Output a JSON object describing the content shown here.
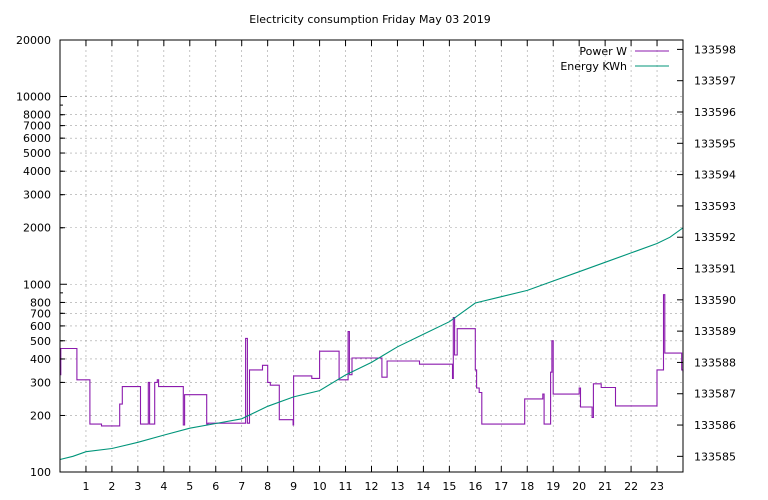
{
  "chart_data": {
    "type": "line",
    "title": "Electricity consumption Friday May 03 2019",
    "xlim": [
      0,
      24
    ],
    "x_ticks": [
      1,
      2,
      3,
      4,
      5,
      6,
      7,
      8,
      9,
      10,
      11,
      12,
      13,
      14,
      15,
      16,
      17,
      18,
      19,
      20,
      21,
      22,
      23
    ],
    "y_left": {
      "scale": "log",
      "lim": [
        100,
        20000
      ],
      "major_ticks": [
        100,
        1000,
        10000
      ],
      "labeled_ticks": [
        100,
        200,
        300,
        400,
        500,
        600,
        700,
        800,
        1000,
        2000,
        3000,
        4000,
        5000,
        6000,
        7000,
        8000,
        10000,
        20000
      ]
    },
    "y_right": {
      "scale": "linear",
      "lim": [
        133584.5,
        133598.3
      ],
      "ticks": [
        133585,
        133586,
        133587,
        133588,
        133589,
        133590,
        133591,
        133592,
        133593,
        133594,
        133595,
        133596,
        133597,
        133598
      ]
    },
    "legend_position": "top-right",
    "grid": true,
    "series": [
      {
        "name": "Power W",
        "color": "#8b1aad",
        "axis": "left",
        "step": true,
        "points": [
          [
            0.0,
            330
          ],
          [
            0.03,
            455
          ],
          [
            0.65,
            455
          ],
          [
            0.65,
            310
          ],
          [
            1.15,
            310
          ],
          [
            1.15,
            180
          ],
          [
            1.6,
            180
          ],
          [
            1.6,
            176
          ],
          [
            2.3,
            176
          ],
          [
            2.3,
            230
          ],
          [
            2.4,
            285
          ],
          [
            3.1,
            285
          ],
          [
            3.1,
            180
          ],
          [
            3.35,
            180
          ],
          [
            3.4,
            300
          ],
          [
            3.45,
            180
          ],
          [
            3.65,
            180
          ],
          [
            3.65,
            300
          ],
          [
            3.75,
            310
          ],
          [
            3.8,
            285
          ],
          [
            4.7,
            285
          ],
          [
            4.75,
            178
          ],
          [
            4.8,
            258
          ],
          [
            5.6,
            258
          ],
          [
            5.65,
            180
          ],
          [
            5.7,
            182
          ],
          [
            7.1,
            182
          ],
          [
            7.15,
            515
          ],
          [
            7.22,
            182
          ],
          [
            7.3,
            350
          ],
          [
            7.75,
            350
          ],
          [
            7.8,
            370
          ],
          [
            7.95,
            370
          ],
          [
            8.0,
            300
          ],
          [
            8.1,
            290
          ],
          [
            8.3,
            290
          ],
          [
            8.45,
            190
          ],
          [
            8.95,
            190
          ],
          [
            8.98,
            178
          ],
          [
            9.0,
            325
          ],
          [
            9.6,
            325
          ],
          [
            9.7,
            315
          ],
          [
            9.95,
            315
          ],
          [
            10.0,
            440
          ],
          [
            10.7,
            440
          ],
          [
            10.75,
            310
          ],
          [
            11.05,
            310
          ],
          [
            11.1,
            560
          ],
          [
            11.15,
            330
          ],
          [
            11.25,
            405
          ],
          [
            12.35,
            405
          ],
          [
            12.4,
            320
          ],
          [
            12.55,
            320
          ],
          [
            12.6,
            390
          ],
          [
            13.8,
            390
          ],
          [
            13.85,
            375
          ],
          [
            15.1,
            375
          ],
          [
            15.12,
            315
          ],
          [
            15.15,
            665
          ],
          [
            15.2,
            420
          ],
          [
            15.3,
            580
          ],
          [
            15.95,
            580
          ],
          [
            16.0,
            350
          ],
          [
            16.05,
            280
          ],
          [
            16.15,
            265
          ],
          [
            16.25,
            180
          ],
          [
            17.85,
            180
          ],
          [
            17.9,
            245
          ],
          [
            18.55,
            245
          ],
          [
            18.6,
            260
          ],
          [
            18.65,
            180
          ],
          [
            18.85,
            180
          ],
          [
            18.9,
            340
          ],
          [
            18.95,
            500
          ],
          [
            19.0,
            260
          ],
          [
            19.95,
            260
          ],
          [
            20.0,
            280
          ],
          [
            20.05,
            222
          ],
          [
            20.45,
            222
          ],
          [
            20.5,
            195
          ],
          [
            20.55,
            295
          ],
          [
            20.8,
            295
          ],
          [
            20.85,
            282
          ],
          [
            21.3,
            282
          ],
          [
            21.4,
            225
          ],
          [
            22.95,
            225
          ],
          [
            23.0,
            350
          ],
          [
            23.2,
            350
          ],
          [
            23.25,
            880
          ],
          [
            23.3,
            430
          ],
          [
            23.9,
            430
          ],
          [
            23.95,
            350
          ],
          [
            24.0,
            340
          ]
        ]
      },
      {
        "name": "Energy KWh",
        "color": "#00957a",
        "axis": "right",
        "points": [
          [
            0.0,
            133584.9
          ],
          [
            0.5,
            133585.0
          ],
          [
            1.0,
            133585.15
          ],
          [
            2.0,
            133585.25
          ],
          [
            3.0,
            133585.45
          ],
          [
            4.0,
            133585.68
          ],
          [
            5.0,
            133585.9
          ],
          [
            6.0,
            133586.05
          ],
          [
            7.0,
            133586.2
          ],
          [
            8.0,
            133586.6
          ],
          [
            9.0,
            133586.9
          ],
          [
            10.0,
            133587.1
          ],
          [
            11.0,
            133587.6
          ],
          [
            12.0,
            133588.0
          ],
          [
            13.0,
            133588.5
          ],
          [
            14.0,
            133588.9
          ],
          [
            15.0,
            133589.3
          ],
          [
            16.0,
            133589.9
          ],
          [
            17.0,
            133590.1
          ],
          [
            18.0,
            133590.3
          ],
          [
            19.0,
            133590.6
          ],
          [
            20.0,
            133590.9
          ],
          [
            21.0,
            133591.2
          ],
          [
            22.0,
            133591.5
          ],
          [
            23.0,
            133591.8
          ],
          [
            23.5,
            133592.0
          ],
          [
            24.0,
            133592.3
          ]
        ]
      }
    ]
  }
}
